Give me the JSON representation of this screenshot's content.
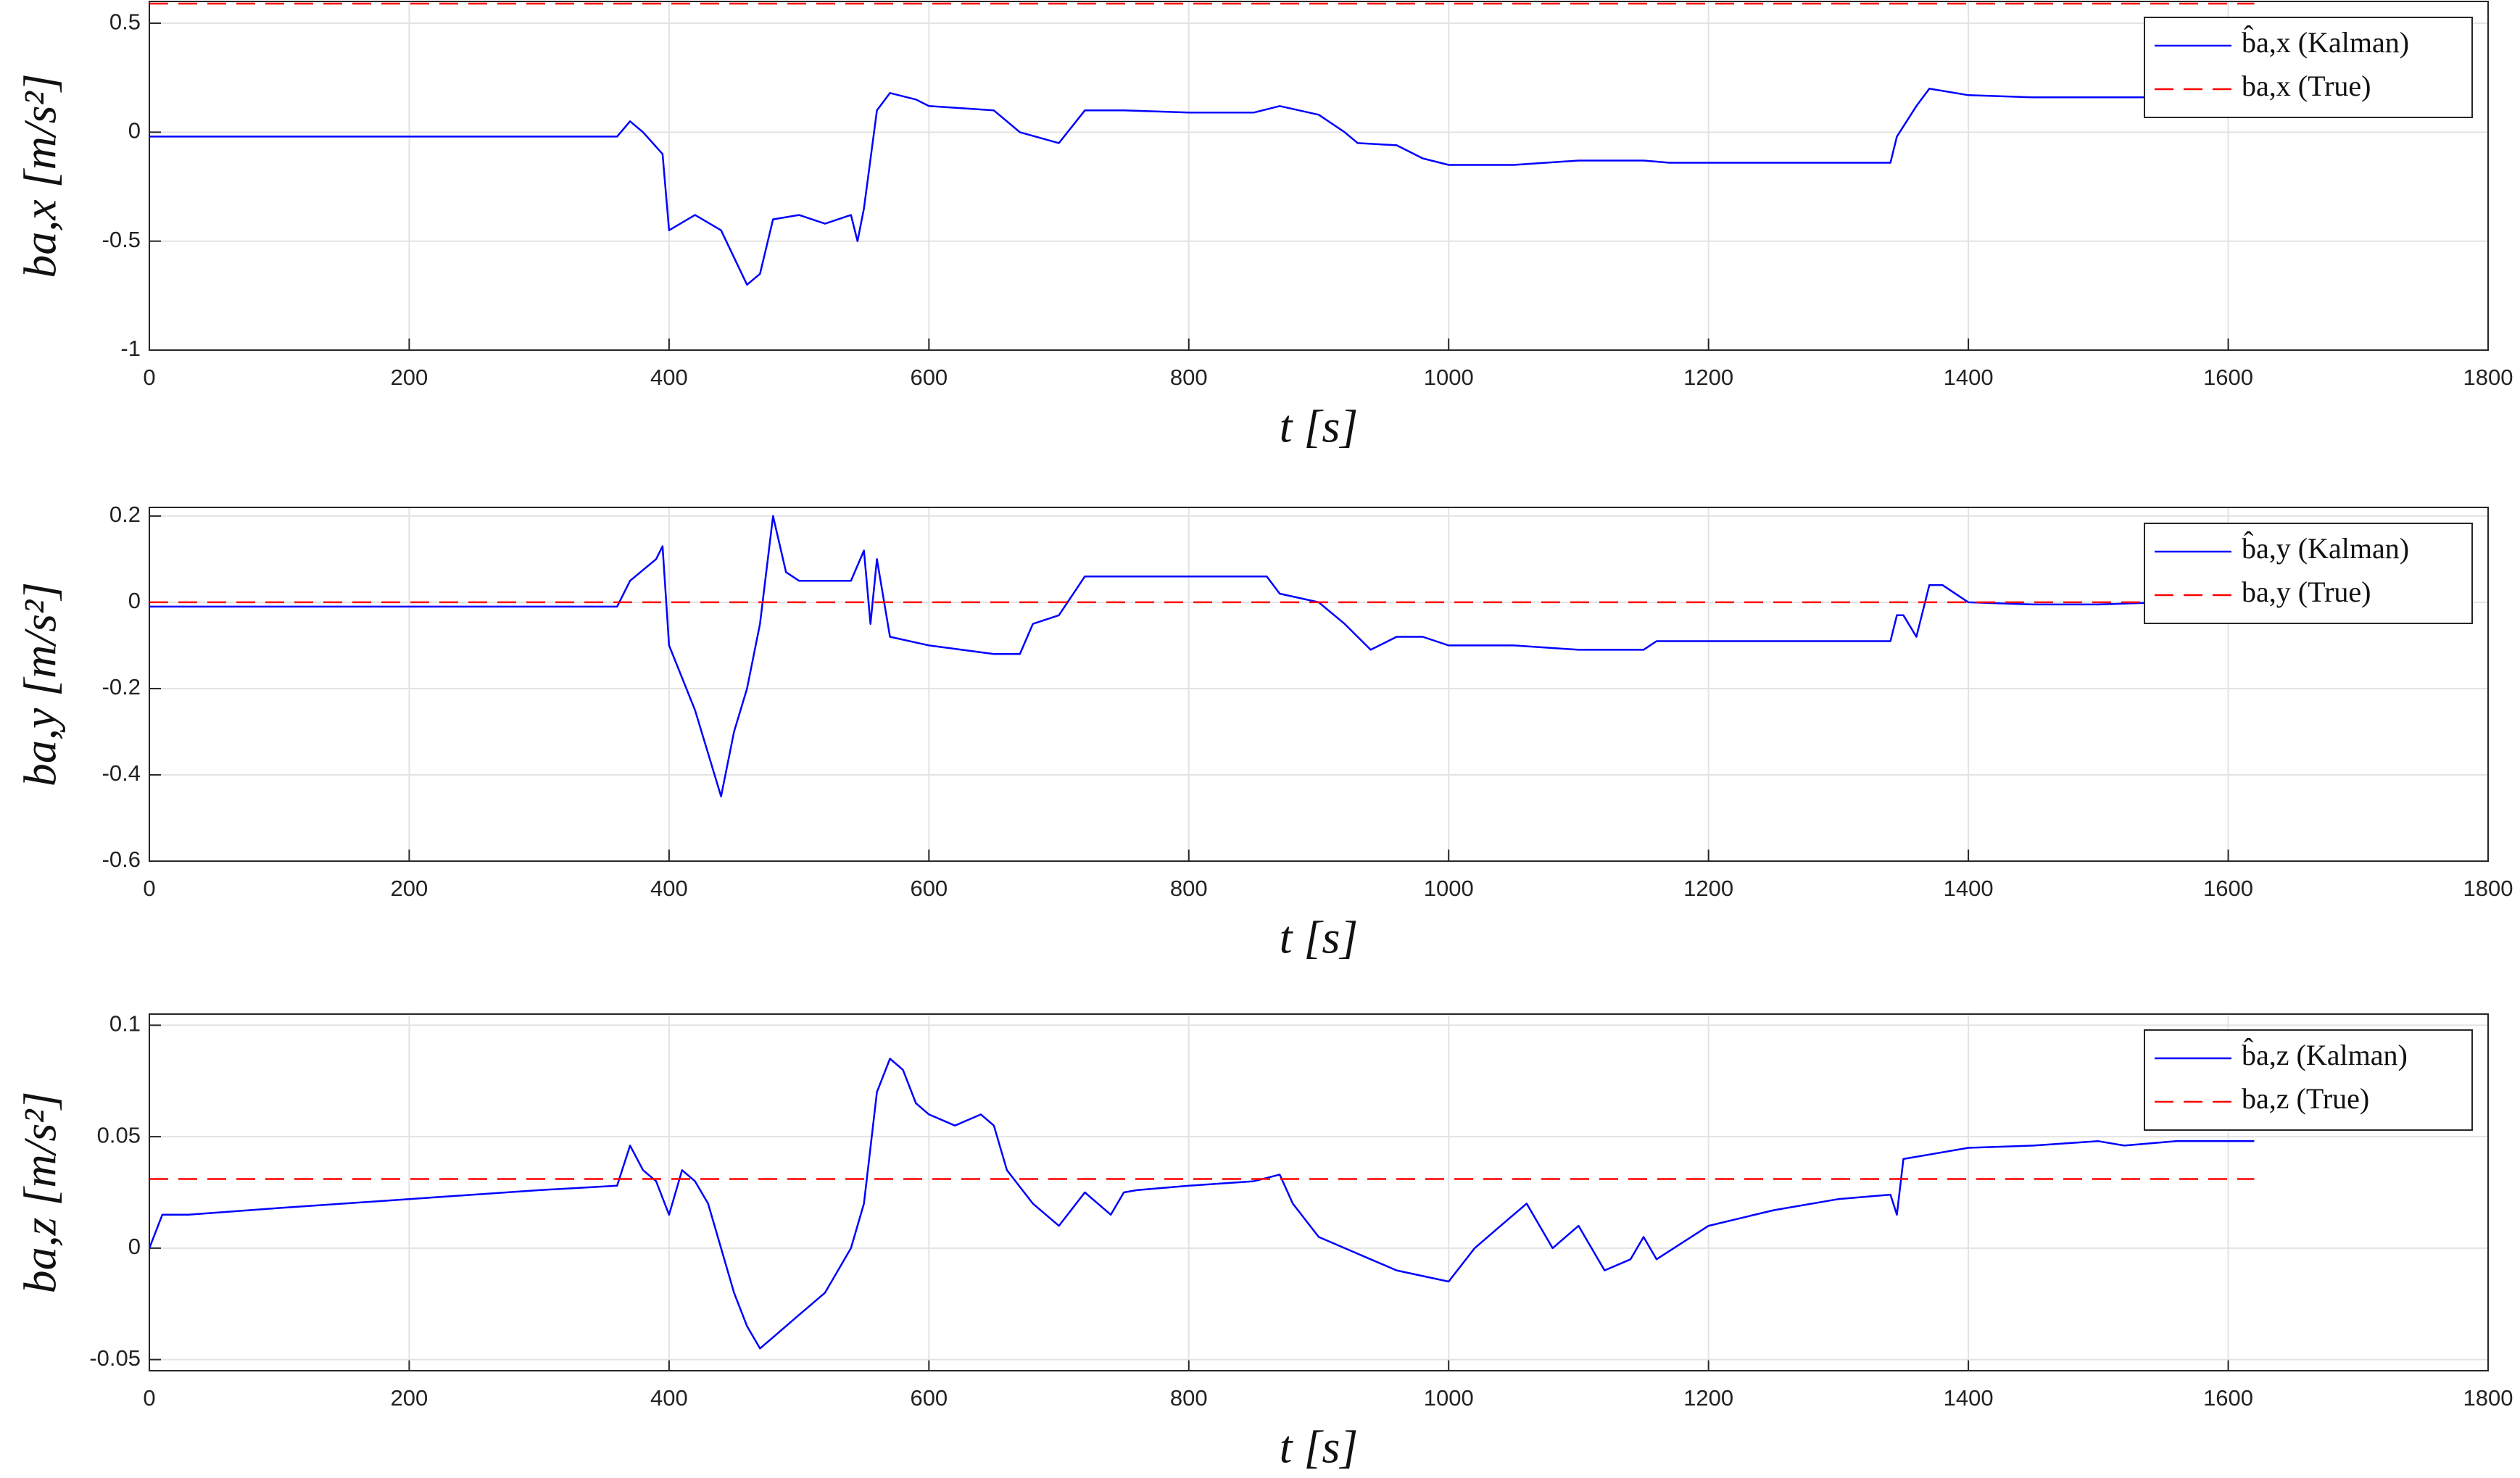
{
  "chart_data": [
    {
      "type": "line",
      "xlabel": "t [s]",
      "ylabel": "ba,x [m/s²]",
      "xlim": [
        0,
        1800
      ],
      "ylim": [
        -1,
        0.6
      ],
      "xticks": [
        0,
        200,
        400,
        600,
        800,
        1000,
        1200,
        1400,
        1600,
        1800
      ],
      "yticks": [
        -1,
        -0.5,
        0,
        0.5
      ],
      "grid": true,
      "legend": "top right",
      "series": [
        {
          "name": "b̂a,x (Kalman)",
          "color": "#0000ff",
          "linestyle": "solid",
          "x": [
            0,
            360,
            370,
            380,
            395,
            400,
            420,
            440,
            460,
            470,
            480,
            500,
            520,
            540,
            545,
            550,
            560,
            570,
            590,
            600,
            650,
            670,
            700,
            720,
            750,
            800,
            850,
            870,
            900,
            920,
            930,
            960,
            980,
            1000,
            1050,
            1100,
            1150,
            1170,
            1200,
            1300,
            1340,
            1345,
            1360,
            1370,
            1400,
            1450,
            1500,
            1550,
            1620
          ],
          "values": [
            -0.02,
            -0.02,
            0.05,
            0.0,
            -0.1,
            -0.45,
            -0.38,
            -0.45,
            -0.7,
            -0.65,
            -0.4,
            -0.38,
            -0.42,
            -0.38,
            -0.5,
            -0.35,
            0.1,
            0.18,
            0.15,
            0.12,
            0.1,
            0.0,
            -0.05,
            0.1,
            0.1,
            0.09,
            0.09,
            0.12,
            0.08,
            0.0,
            -0.05,
            -0.06,
            -0.12,
            -0.15,
            -0.15,
            -0.13,
            -0.13,
            -0.14,
            -0.14,
            -0.14,
            -0.14,
            -0.02,
            0.12,
            0.2,
            0.17,
            0.16,
            0.16,
            0.16,
            0.16
          ]
        },
        {
          "name": "ba,x (True)",
          "color": "#ff0000",
          "linestyle": "dashed",
          "x": [
            0,
            1620
          ],
          "values": [
            0.59,
            0.59
          ]
        }
      ]
    },
    {
      "type": "line",
      "xlabel": "t [s]",
      "ylabel": "ba,y [m/s²]",
      "xlim": [
        0,
        1800
      ],
      "ylim": [
        -0.6,
        0.22
      ],
      "xticks": [
        0,
        200,
        400,
        600,
        800,
        1000,
        1200,
        1400,
        1600,
        1800
      ],
      "yticks": [
        -0.6,
        -0.4,
        -0.2,
        0,
        0.2
      ],
      "grid": true,
      "legend": "top right",
      "series": [
        {
          "name": "b̂a,y (Kalman)",
          "color": "#0000ff",
          "linestyle": "solid",
          "x": [
            0,
            360,
            370,
            390,
            395,
            400,
            420,
            430,
            440,
            450,
            460,
            470,
            480,
            490,
            500,
            540,
            550,
            555,
            560,
            570,
            600,
            650,
            670,
            680,
            700,
            720,
            800,
            860,
            870,
            900,
            920,
            940,
            960,
            980,
            1000,
            1050,
            1100,
            1150,
            1160,
            1200,
            1300,
            1340,
            1345,
            1350,
            1360,
            1370,
            1380,
            1400,
            1450,
            1500,
            1550,
            1620
          ],
          "values": [
            -0.01,
            -0.01,
            0.05,
            0.1,
            0.13,
            -0.1,
            -0.25,
            -0.35,
            -0.45,
            -0.3,
            -0.2,
            -0.05,
            0.2,
            0.07,
            0.05,
            0.05,
            0.12,
            -0.05,
            0.1,
            -0.08,
            -0.1,
            -0.12,
            -0.12,
            -0.05,
            -0.03,
            0.06,
            0.06,
            0.06,
            0.02,
            0.0,
            -0.05,
            -0.11,
            -0.08,
            -0.08,
            -0.1,
            -0.1,
            -0.11,
            -0.11,
            -0.09,
            -0.09,
            -0.09,
            -0.09,
            -0.03,
            -0.03,
            -0.08,
            0.04,
            0.04,
            0.0,
            -0.005,
            -0.005,
            0.0,
            0.0
          ]
        },
        {
          "name": "ba,y (True)",
          "color": "#ff0000",
          "linestyle": "dashed",
          "x": [
            0,
            1620
          ],
          "values": [
            0,
            0
          ]
        }
      ]
    },
    {
      "type": "line",
      "xlabel": "t [s]",
      "ylabel": "ba,z [m/s²]",
      "xlim": [
        0,
        1800
      ],
      "ylim": [
        -0.055,
        0.105
      ],
      "xticks": [
        0,
        200,
        400,
        600,
        800,
        1000,
        1200,
        1400,
        1600,
        1800
      ],
      "yticks": [
        -0.05,
        0,
        0.05,
        0.1
      ],
      "grid": true,
      "legend": "top right",
      "series": [
        {
          "name": "b̂a,z (Kalman)",
          "color": "#0000ff",
          "linestyle": "solid",
          "x": [
            0,
            10,
            30,
            100,
            200,
            300,
            360,
            370,
            380,
            390,
            400,
            410,
            420,
            430,
            440,
            450,
            460,
            470,
            480,
            500,
            520,
            540,
            550,
            560,
            570,
            580,
            590,
            600,
            620,
            640,
            650,
            660,
            680,
            700,
            720,
            740,
            750,
            760,
            800,
            850,
            870,
            880,
            900,
            920,
            940,
            960,
            1000,
            1020,
            1040,
            1060,
            1080,
            1100,
            1120,
            1140,
            1150,
            1160,
            1200,
            1250,
            1300,
            1340,
            1345,
            1350,
            1400,
            1450,
            1500,
            1520,
            1560,
            1620
          ],
          "values": [
            0.0,
            0.015,
            0.015,
            0.018,
            0.022,
            0.026,
            0.028,
            0.046,
            0.035,
            0.03,
            0.015,
            0.035,
            0.03,
            0.02,
            0.0,
            -0.02,
            -0.035,
            -0.045,
            -0.04,
            -0.03,
            -0.02,
            0.0,
            0.02,
            0.07,
            0.085,
            0.08,
            0.065,
            0.06,
            0.055,
            0.06,
            0.055,
            0.035,
            0.02,
            0.01,
            0.025,
            0.015,
            0.025,
            0.026,
            0.028,
            0.03,
            0.033,
            0.02,
            0.005,
            0.0,
            -0.005,
            -0.01,
            -0.015,
            0.0,
            0.01,
            0.02,
            0.0,
            0.01,
            -0.01,
            -0.005,
            0.005,
            -0.005,
            0.01,
            0.017,
            0.022,
            0.024,
            0.015,
            0.04,
            0.045,
            0.046,
            0.048,
            0.046,
            0.048,
            0.048
          ]
        },
        {
          "name": "ba,z (True)",
          "color": "#ff0000",
          "linestyle": "dashed",
          "x": [
            0,
            1620
          ],
          "values": [
            0.031,
            0.031
          ]
        }
      ]
    }
  ]
}
